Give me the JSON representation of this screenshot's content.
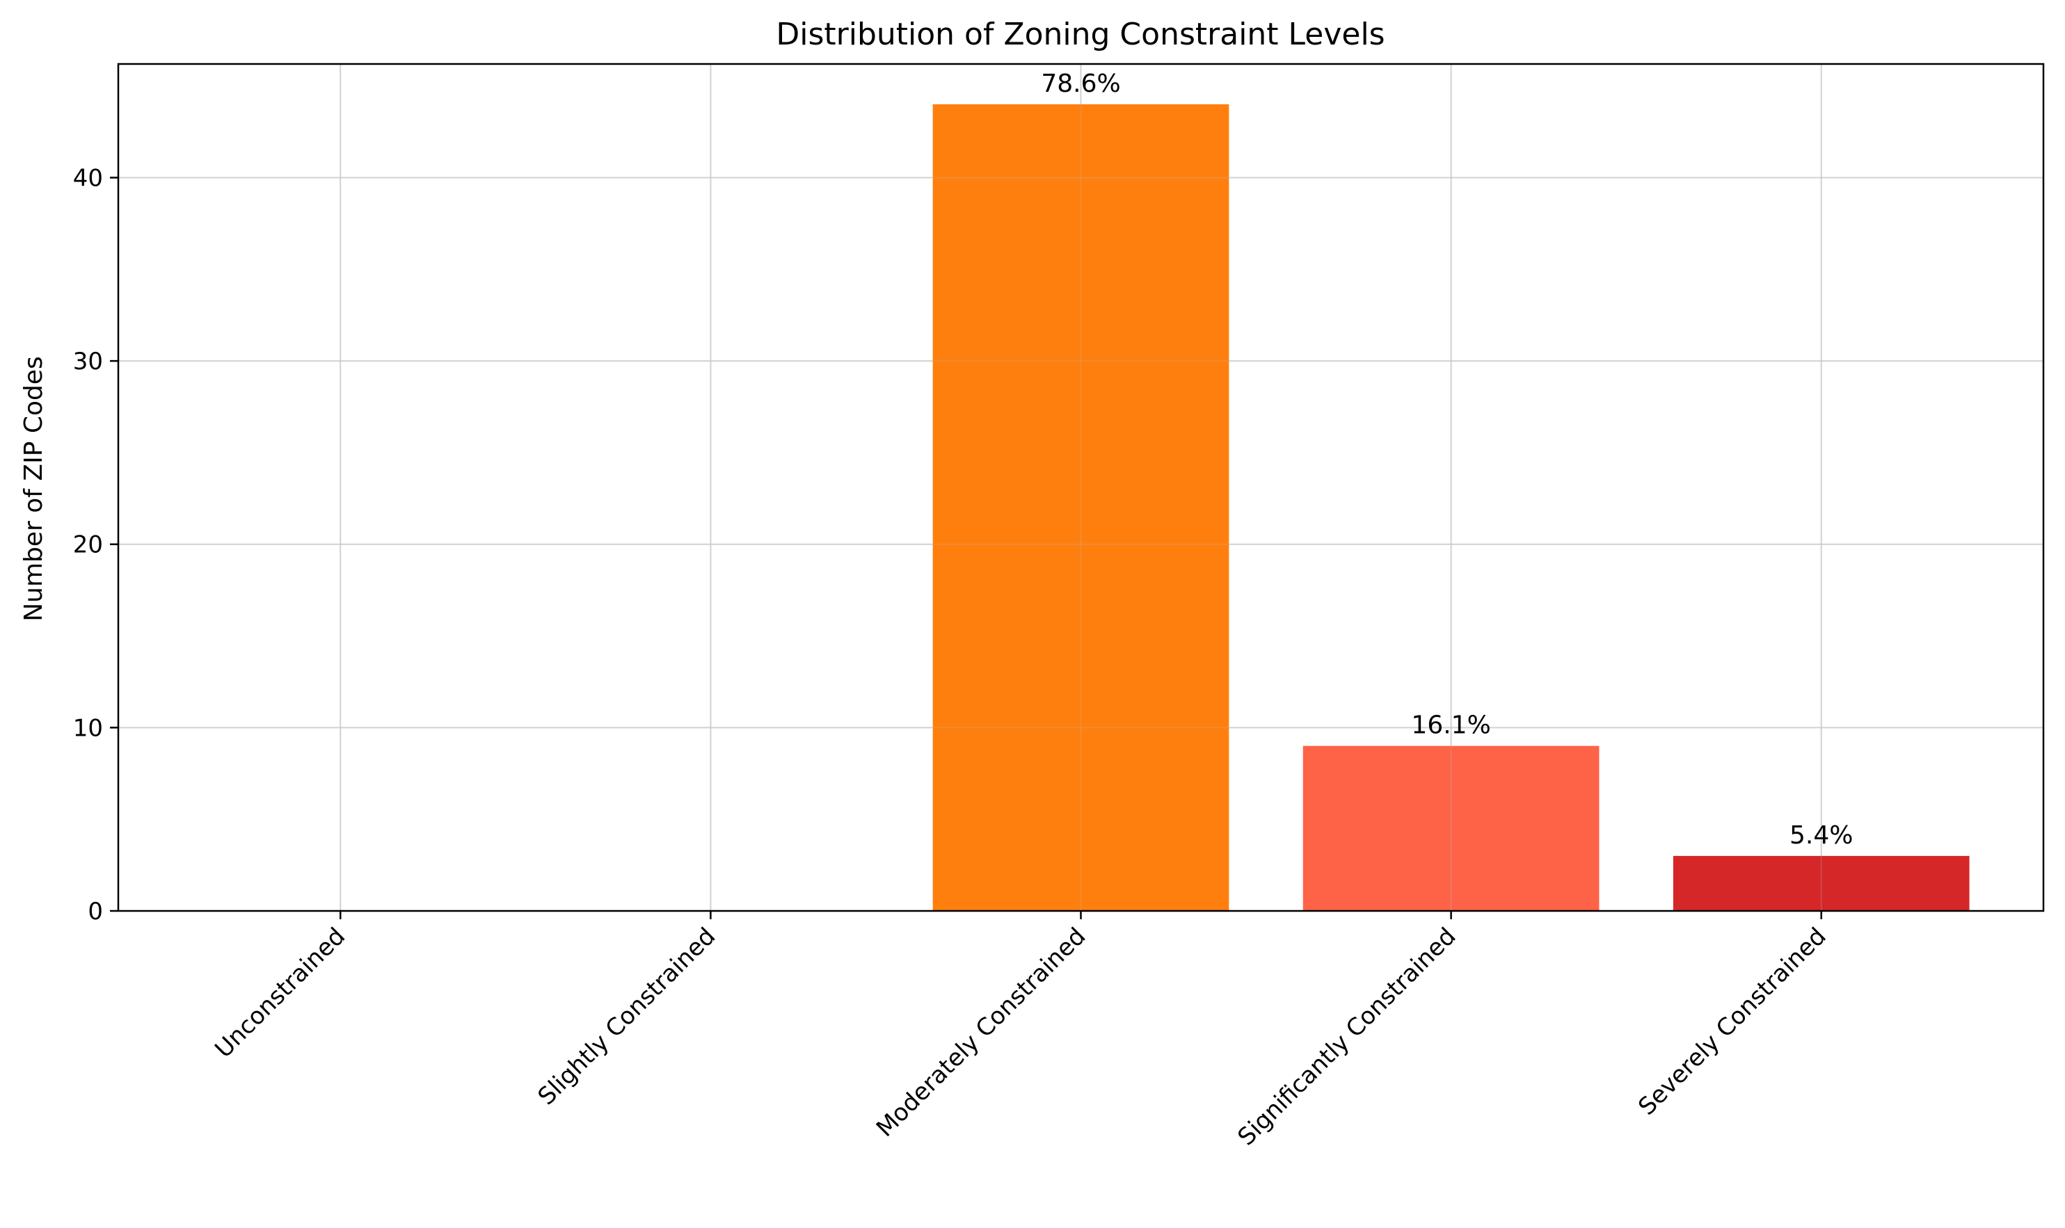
{
  "chart_data": {
    "type": "bar",
    "title": "Distribution of Zoning Constraint Levels",
    "xlabel": "",
    "ylabel": "Number of ZIP Codes",
    "categories": [
      "Unconstrained",
      "Slightly Constrained",
      "Moderately Constrained",
      "Significantly Constrained",
      "Severely Constrained"
    ],
    "values": [
      0,
      0,
      44,
      9,
      3
    ],
    "data_labels": [
      "",
      "",
      "78.6%",
      "16.1%",
      "5.4%"
    ],
    "colors": [
      "#2ca02c",
      "#98df8a",
      "#ff7f0e",
      "#ff6347",
      "#d62728"
    ],
    "ylim": [
      0,
      46.2
    ],
    "yticks": [
      0,
      10,
      20,
      30,
      40
    ],
    "grid": true,
    "x_tick_rotation": -45
  }
}
